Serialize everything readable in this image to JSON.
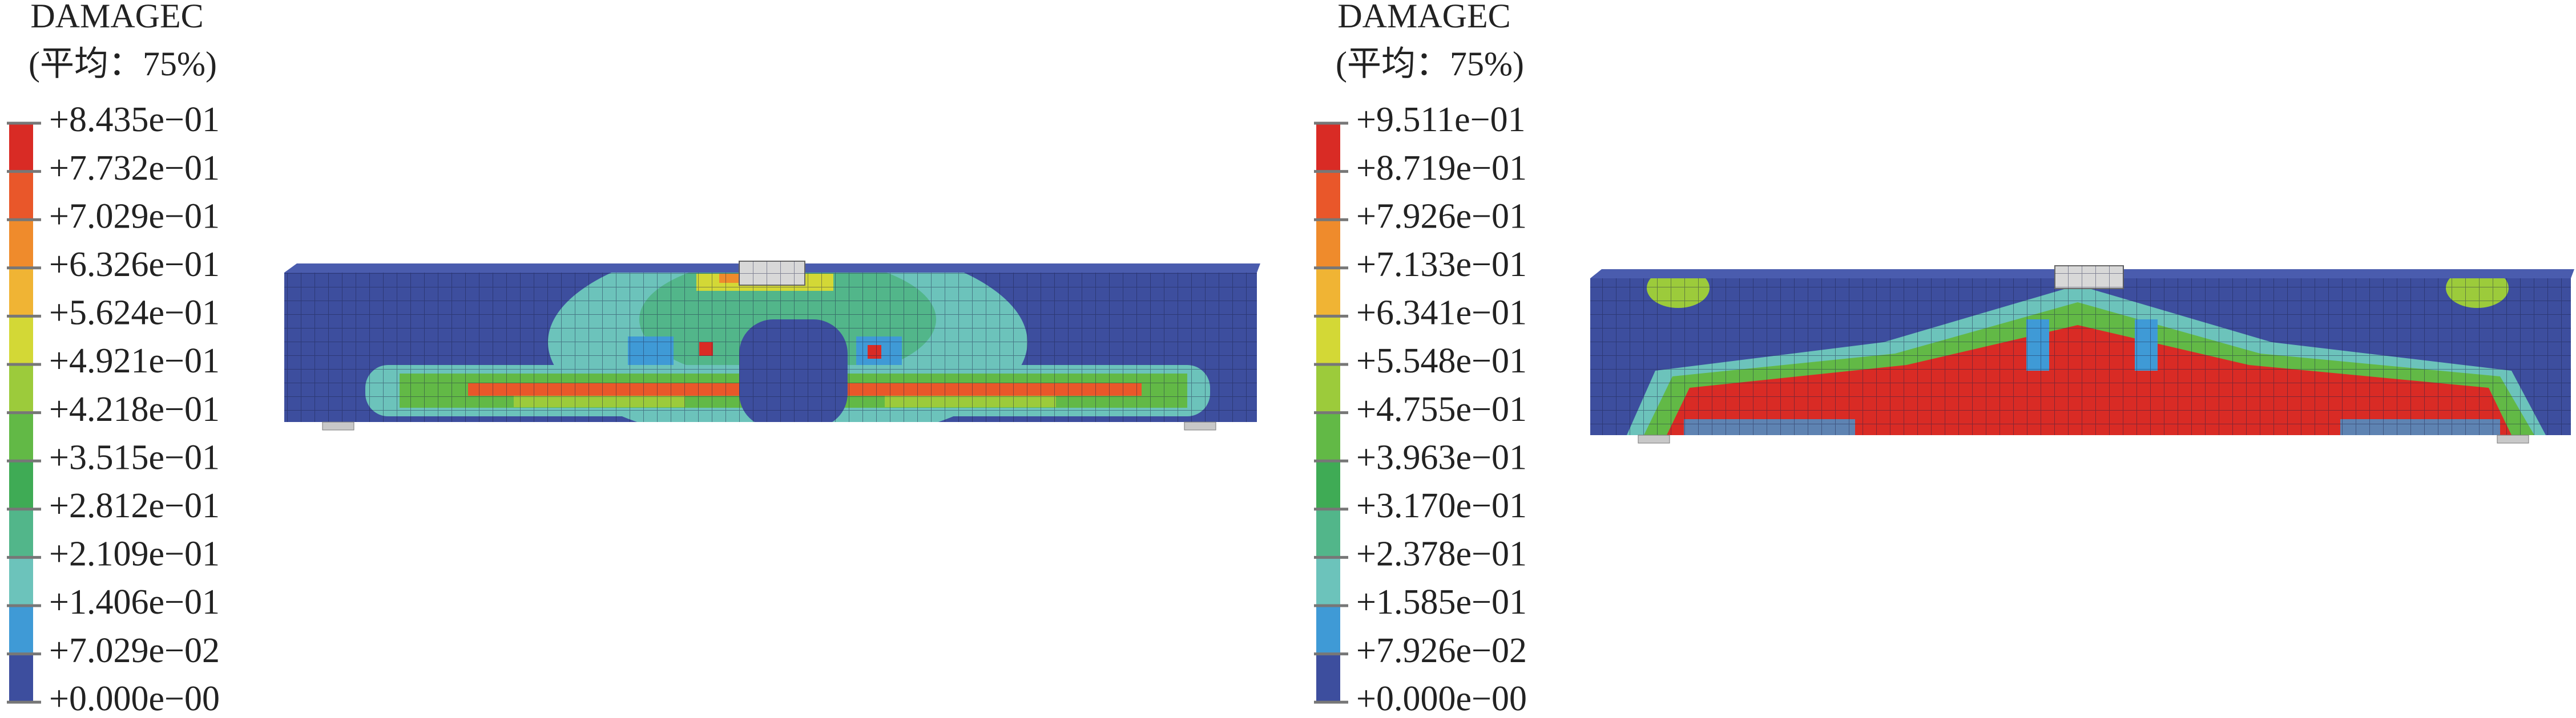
{
  "panels": [
    {
      "title": "DAMAGEC",
      "subtitle": "(平均：75%)",
      "labels": [
        "+8.435e−01",
        "+7.732e−01",
        "+7.029e−01",
        "+6.326e−01",
        "+5.624e−01",
        "+4.921e−01",
        "+4.218e−01",
        "+3.515e−01",
        "+2.812e−01",
        "+2.109e−01",
        "+1.406e−01",
        "+7.029e−02",
        "+0.000e−00"
      ]
    },
    {
      "title": "DAMAGEC",
      "subtitle": "(平均：75%)",
      "labels": [
        "+9.511e−01",
        "+8.719e−01",
        "+7.926e−01",
        "+7.133e−01",
        "+6.341e−01",
        "+5.548e−01",
        "+4.755e−01",
        "+3.963e−01",
        "+3.170e−01",
        "+2.378e−01",
        "+1.585e−01",
        "+7.926e−02",
        "+0.000e−00"
      ]
    }
  ]
}
